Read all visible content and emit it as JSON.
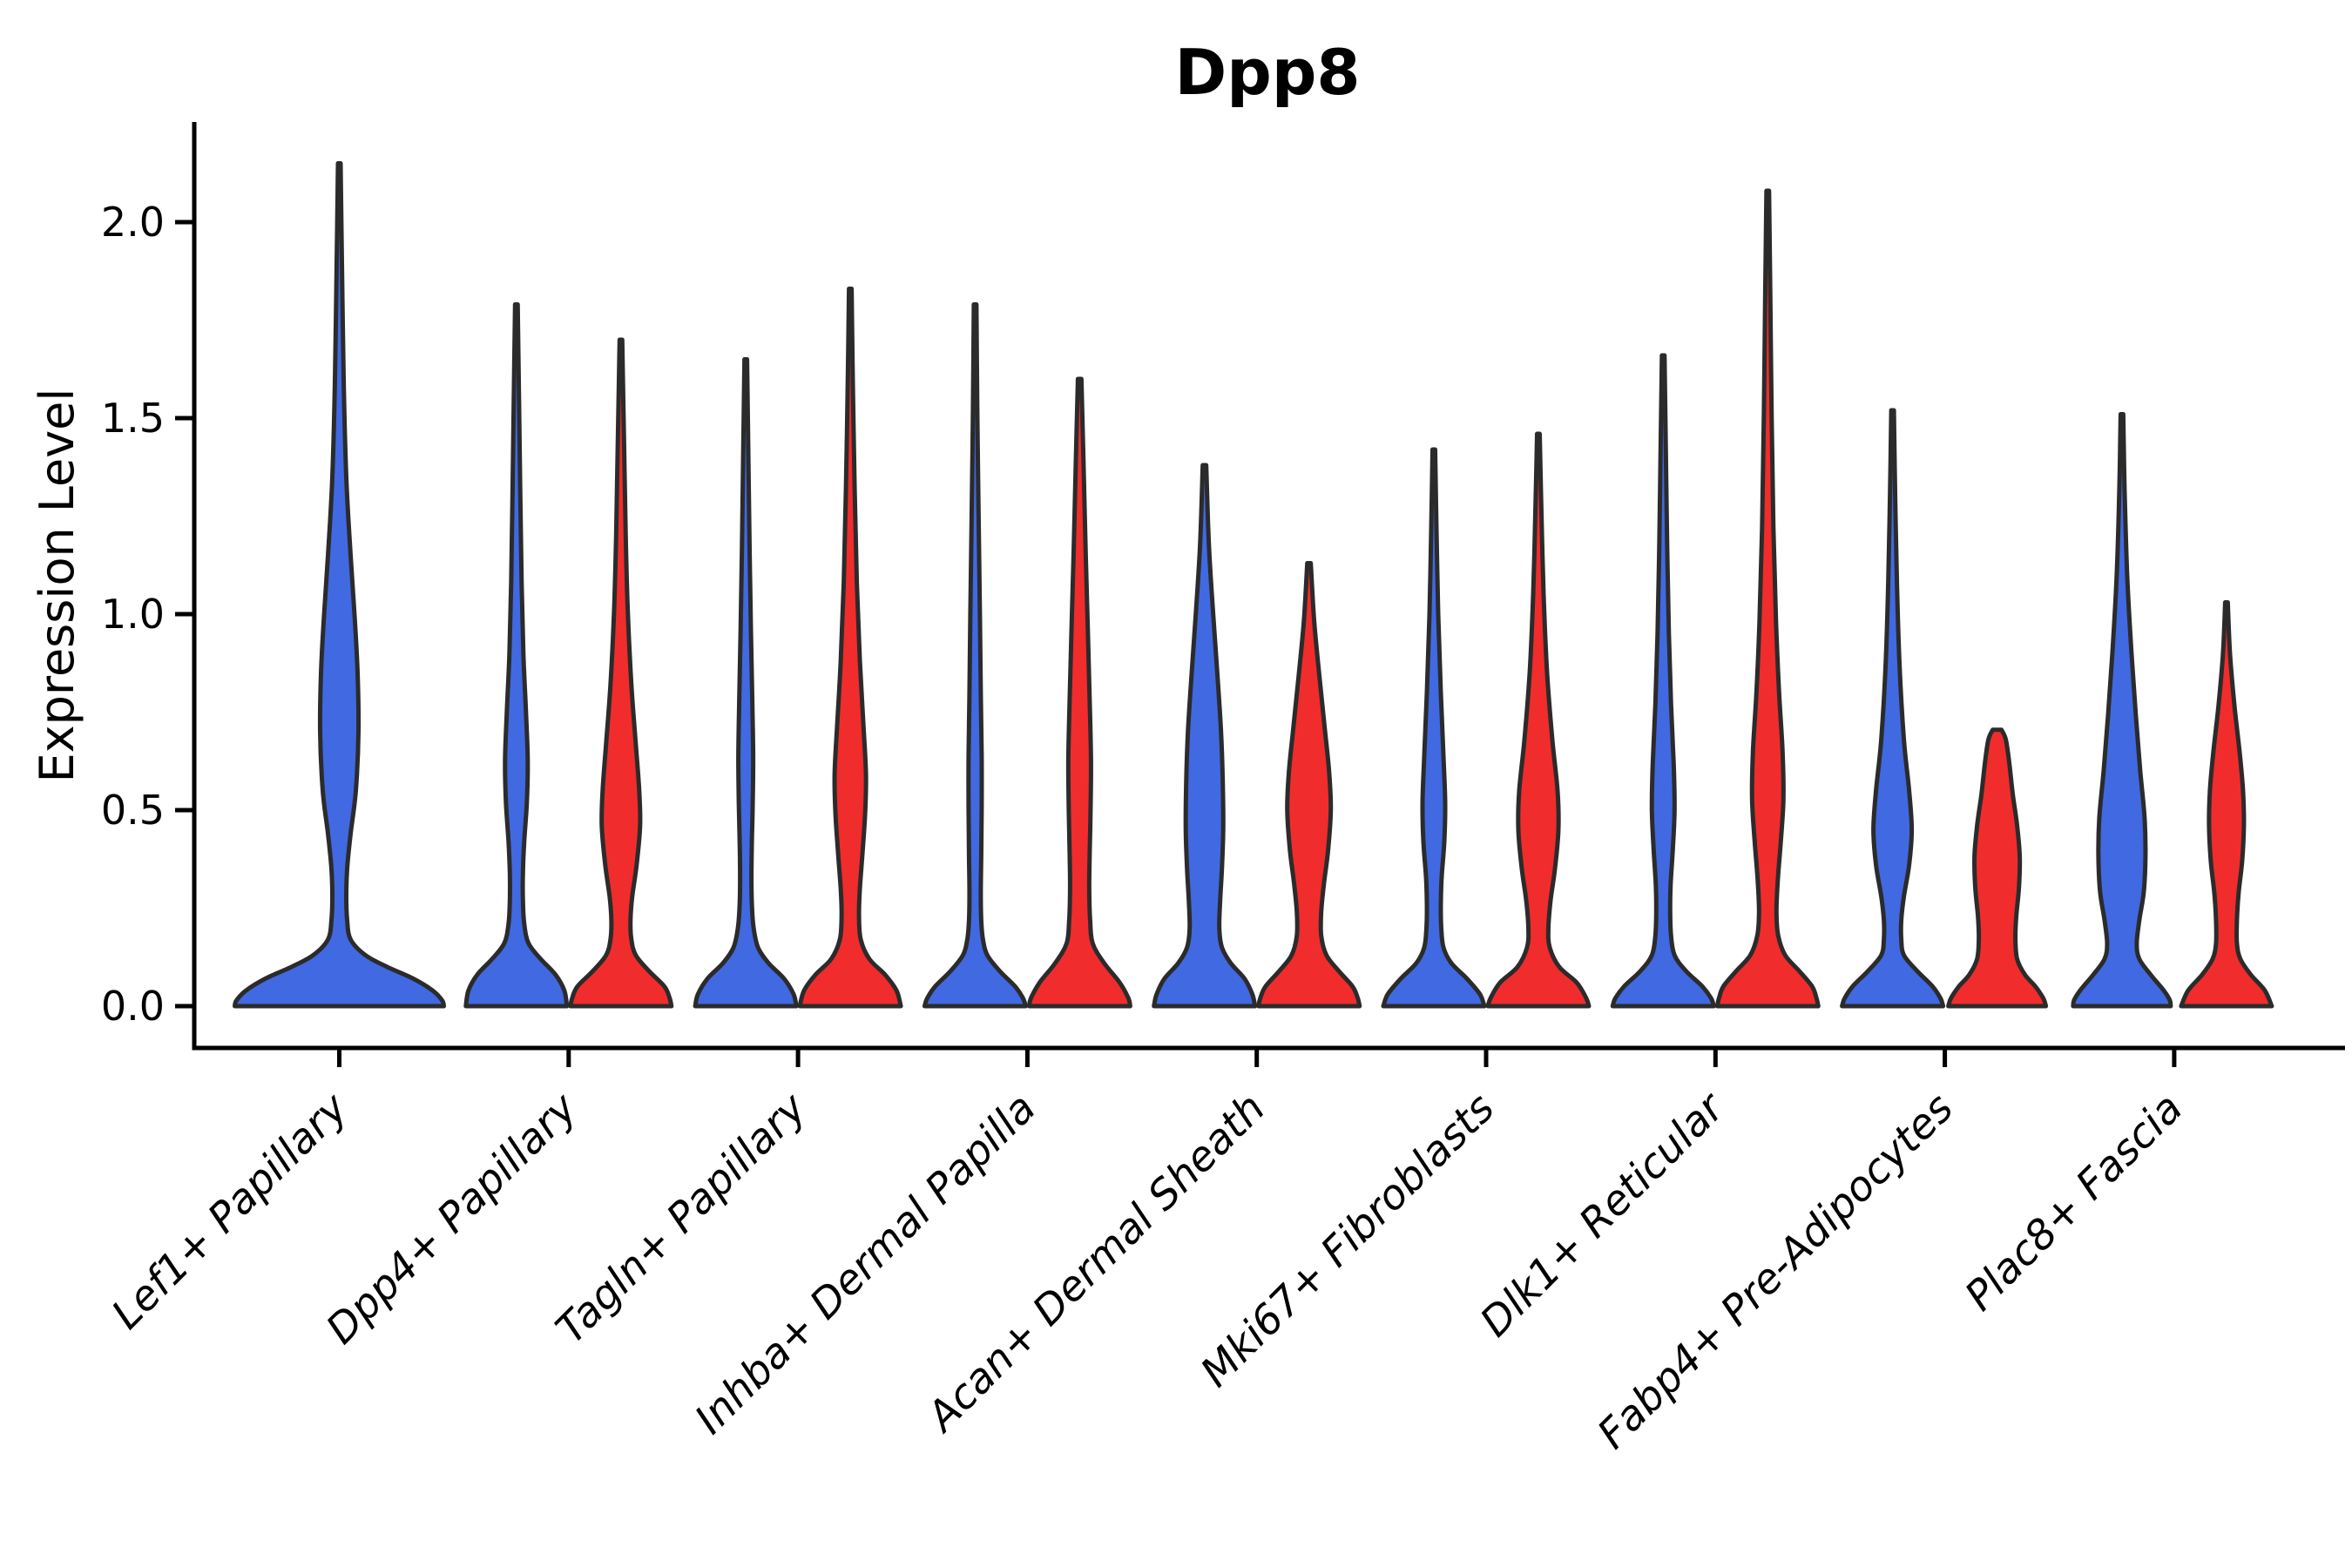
{
  "title": "Dpp8",
  "y_axis": {
    "label": "Expression Level",
    "tick_labels": [
      "0.0",
      "0.5",
      "1.0",
      "1.5",
      "2.0"
    ],
    "tick_values": [
      0.0,
      0.5,
      1.0,
      1.5,
      2.0
    ]
  },
  "colors": {
    "blue_fill": "#4169E1",
    "red_fill": "#F12C2C",
    "outline": "#2B2B2B",
    "axis": "#000000"
  },
  "chart_data": {
    "type": "violin",
    "title": "Dpp8",
    "xlabel": "",
    "ylabel": "Expression Level",
    "ylim": [
      -0.11,
      2.26
    ],
    "yticks": [
      0.0,
      0.5,
      1.0,
      1.5,
      2.0
    ],
    "grid": false,
    "legend": "none",
    "categories": [
      "Lef1+ Papillary",
      "Dpp4+ Papillary",
      "Tagln+ Papillary",
      "Inhba+ Dermal Papilla",
      "Acan+ Dermal Sheath",
      "Mki67+ Fibroblasts",
      "Dlk1+ Reticular",
      "Fabp4+ Pre-Adipocytes",
      "Plac8+ Fascia"
    ],
    "series": [
      {
        "name": "blue",
        "color": "#4169E1",
        "max_expression": [
          2.15,
          1.79,
          1.65,
          1.79,
          1.38,
          1.42,
          1.66,
          1.52,
          1.51
        ]
      },
      {
        "name": "red",
        "color": "#F12C2C",
        "max_expression": [
          null,
          1.7,
          1.83,
          1.6,
          1.13,
          1.46,
          2.08,
          0.7,
          1.03
        ]
      }
    ],
    "violins": [
      {
        "category_index": 0,
        "side": "blue",
        "single": true,
        "max": 2.15,
        "profile": [
          [
            2.15,
            1.5
          ],
          [
            1.9,
            3
          ],
          [
            1.6,
            5
          ],
          [
            1.35,
            8
          ],
          [
            1.15,
            13
          ],
          [
            0.98,
            18
          ],
          [
            0.85,
            21
          ],
          [
            0.7,
            22
          ],
          [
            0.55,
            19
          ],
          [
            0.44,
            13
          ],
          [
            0.35,
            9
          ],
          [
            0.28,
            8
          ],
          [
            0.22,
            9
          ],
          [
            0.17,
            13
          ],
          [
            0.13,
            30
          ],
          [
            0.1,
            55
          ],
          [
            0.07,
            85
          ],
          [
            0.04,
            107
          ],
          [
            0.015,
            118
          ],
          [
            0,
            120
          ]
        ]
      },
      {
        "category_index": 1,
        "side": "blue",
        "single": false,
        "max": 1.79,
        "profile": [
          [
            1.79,
            1.5
          ],
          [
            1.55,
            3
          ],
          [
            1.3,
            4.5
          ],
          [
            1.08,
            6
          ],
          [
            0.9,
            8
          ],
          [
            0.75,
            11
          ],
          [
            0.63,
            13
          ],
          [
            0.52,
            12
          ],
          [
            0.42,
            9
          ],
          [
            0.34,
            7.5
          ],
          [
            0.27,
            7.5
          ],
          [
            0.21,
            9
          ],
          [
            0.16,
            14
          ],
          [
            0.12,
            28
          ],
          [
            0.08,
            45
          ],
          [
            0.04,
            55
          ],
          [
            0,
            58
          ]
        ]
      },
      {
        "category_index": 1,
        "side": "red",
        "single": false,
        "max": 1.7,
        "profile": [
          [
            1.7,
            1.5
          ],
          [
            1.45,
            3.5
          ],
          [
            1.2,
            5.5
          ],
          [
            1.0,
            8
          ],
          [
            0.82,
            12
          ],
          [
            0.67,
            17
          ],
          [
            0.55,
            21
          ],
          [
            0.46,
            22
          ],
          [
            0.36,
            18
          ],
          [
            0.28,
            13
          ],
          [
            0.22,
            11
          ],
          [
            0.17,
            12
          ],
          [
            0.13,
            17
          ],
          [
            0.09,
            32
          ],
          [
            0.05,
            50
          ],
          [
            0.02,
            56
          ],
          [
            0,
            58
          ]
        ]
      },
      {
        "category_index": 2,
        "side": "blue",
        "single": false,
        "max": 1.65,
        "profile": [
          [
            1.65,
            1.5
          ],
          [
            1.4,
            3
          ],
          [
            1.15,
            4.5
          ],
          [
            0.95,
            6
          ],
          [
            0.78,
            7.5
          ],
          [
            0.64,
            8.5
          ],
          [
            0.52,
            8
          ],
          [
            0.42,
            7
          ],
          [
            0.33,
            6.5
          ],
          [
            0.26,
            7
          ],
          [
            0.2,
            9
          ],
          [
            0.15,
            14
          ],
          [
            0.11,
            26
          ],
          [
            0.07,
            44
          ],
          [
            0.03,
            55
          ],
          [
            0,
            58
          ]
        ]
      },
      {
        "category_index": 2,
        "side": "red",
        "single": false,
        "max": 1.83,
        "profile": [
          [
            1.83,
            1.5
          ],
          [
            1.58,
            3
          ],
          [
            1.32,
            5
          ],
          [
            1.08,
            7.5
          ],
          [
            0.88,
            11
          ],
          [
            0.72,
            15
          ],
          [
            0.59,
            18
          ],
          [
            0.49,
            17
          ],
          [
            0.39,
            14
          ],
          [
            0.3,
            11
          ],
          [
            0.23,
            10
          ],
          [
            0.17,
            12
          ],
          [
            0.12,
            22
          ],
          [
            0.08,
            40
          ],
          [
            0.04,
            53
          ],
          [
            0,
            58
          ]
        ]
      },
      {
        "category_index": 3,
        "side": "blue",
        "single": false,
        "max": 1.79,
        "profile": [
          [
            1.79,
            1.5
          ],
          [
            1.52,
            2.5
          ],
          [
            1.25,
            4
          ],
          [
            1.0,
            5.5
          ],
          [
            0.8,
            6.5
          ],
          [
            0.64,
            7.5
          ],
          [
            0.5,
            7.5
          ],
          [
            0.38,
            7
          ],
          [
            0.29,
            6.5
          ],
          [
            0.22,
            7
          ],
          [
            0.17,
            9
          ],
          [
            0.13,
            14
          ],
          [
            0.09,
            28
          ],
          [
            0.05,
            46
          ],
          [
            0.02,
            55
          ],
          [
            0,
            58
          ]
        ]
      },
      {
        "category_index": 3,
        "side": "red",
        "single": false,
        "max": 1.6,
        "profile": [
          [
            1.6,
            2
          ],
          [
            1.38,
            4.5
          ],
          [
            1.15,
            7
          ],
          [
            0.95,
            9.5
          ],
          [
            0.78,
            11.5
          ],
          [
            0.63,
            13
          ],
          [
            0.5,
            12.5
          ],
          [
            0.39,
            11.5
          ],
          [
            0.3,
            11
          ],
          [
            0.22,
            12
          ],
          [
            0.16,
            15
          ],
          [
            0.11,
            28
          ],
          [
            0.06,
            46
          ],
          [
            0.02,
            56
          ],
          [
            0,
            58
          ]
        ]
      },
      {
        "category_index": 4,
        "side": "blue",
        "single": false,
        "max": 1.38,
        "profile": [
          [
            1.38,
            2
          ],
          [
            1.18,
            5
          ],
          [
            1.0,
            10
          ],
          [
            0.84,
            15
          ],
          [
            0.7,
            19
          ],
          [
            0.57,
            21
          ],
          [
            0.45,
            21.5
          ],
          [
            0.35,
            20
          ],
          [
            0.27,
            18
          ],
          [
            0.2,
            17
          ],
          [
            0.15,
            20
          ],
          [
            0.11,
            30
          ],
          [
            0.07,
            46
          ],
          [
            0.03,
            55
          ],
          [
            0,
            58
          ]
        ]
      },
      {
        "category_index": 4,
        "side": "red",
        "single": false,
        "max": 1.13,
        "profile": [
          [
            1.13,
            2
          ],
          [
            0.98,
            6
          ],
          [
            0.84,
            12
          ],
          [
            0.71,
            18
          ],
          [
            0.6,
            23
          ],
          [
            0.5,
            25
          ],
          [
            0.4,
            22
          ],
          [
            0.31,
            17
          ],
          [
            0.24,
            14
          ],
          [
            0.18,
            14
          ],
          [
            0.13,
            20
          ],
          [
            0.09,
            34
          ],
          [
            0.05,
            50
          ],
          [
            0.02,
            56
          ],
          [
            0,
            58
          ]
        ]
      },
      {
        "category_index": 5,
        "side": "blue",
        "single": false,
        "max": 1.42,
        "profile": [
          [
            1.42,
            1.5
          ],
          [
            1.22,
            3
          ],
          [
            1.0,
            5
          ],
          [
            0.8,
            8
          ],
          [
            0.64,
            11
          ],
          [
            0.52,
            13
          ],
          [
            0.42,
            12
          ],
          [
            0.33,
            9
          ],
          [
            0.26,
            8
          ],
          [
            0.2,
            8.5
          ],
          [
            0.15,
            11
          ],
          [
            0.11,
            20
          ],
          [
            0.07,
            38
          ],
          [
            0.03,
            53
          ],
          [
            0,
            58
          ]
        ]
      },
      {
        "category_index": 5,
        "side": "red",
        "single": false,
        "max": 1.46,
        "profile": [
          [
            1.46,
            1.5
          ],
          [
            1.26,
            3.5
          ],
          [
            1.05,
            6
          ],
          [
            0.85,
            10
          ],
          [
            0.68,
            16
          ],
          [
            0.55,
            22
          ],
          [
            0.45,
            23
          ],
          [
            0.35,
            19
          ],
          [
            0.27,
            14
          ],
          [
            0.2,
            11.5
          ],
          [
            0.15,
            13
          ],
          [
            0.1,
            24
          ],
          [
            0.06,
            44
          ],
          [
            0.02,
            55
          ],
          [
            0,
            58
          ]
        ]
      },
      {
        "category_index": 6,
        "side": "blue",
        "single": false,
        "max": 1.66,
        "profile": [
          [
            1.66,
            1.5
          ],
          [
            1.42,
            3
          ],
          [
            1.18,
            4.5
          ],
          [
            0.95,
            6.5
          ],
          [
            0.77,
            9
          ],
          [
            0.62,
            12
          ],
          [
            0.5,
            13
          ],
          [
            0.4,
            11
          ],
          [
            0.31,
            8.5
          ],
          [
            0.24,
            8
          ],
          [
            0.18,
            9
          ],
          [
            0.13,
            13
          ],
          [
            0.09,
            26
          ],
          [
            0.05,
            45
          ],
          [
            0.02,
            55
          ],
          [
            0,
            58
          ]
        ]
      },
      {
        "category_index": 6,
        "side": "red",
        "single": false,
        "max": 2.08,
        "profile": [
          [
            2.08,
            1.5
          ],
          [
            1.8,
            3
          ],
          [
            1.5,
            4.5
          ],
          [
            1.22,
            6.5
          ],
          [
            0.98,
            9.5
          ],
          [
            0.8,
            13
          ],
          [
            0.65,
            17
          ],
          [
            0.53,
            18
          ],
          [
            0.42,
            15
          ],
          [
            0.32,
            11.5
          ],
          [
            0.24,
            10
          ],
          [
            0.18,
            12
          ],
          [
            0.13,
            20
          ],
          [
            0.09,
            36
          ],
          [
            0.05,
            51
          ],
          [
            0.02,
            56
          ],
          [
            0,
            58
          ]
        ]
      },
      {
        "category_index": 7,
        "side": "blue",
        "single": false,
        "max": 1.52,
        "profile": [
          [
            1.52,
            1.5
          ],
          [
            1.3,
            3
          ],
          [
            1.08,
            5
          ],
          [
            0.87,
            8
          ],
          [
            0.68,
            13
          ],
          [
            0.55,
            19
          ],
          [
            0.45,
            22
          ],
          [
            0.36,
            19
          ],
          [
            0.28,
            13
          ],
          [
            0.22,
            10
          ],
          [
            0.17,
            10
          ],
          [
            0.13,
            13
          ],
          [
            0.09,
            28
          ],
          [
            0.05,
            46
          ],
          [
            0.02,
            55
          ],
          [
            0,
            58
          ]
        ]
      },
      {
        "category_index": 7,
        "side": "red",
        "single": false,
        "max": 0.7,
        "profile": [
          [
            0.705,
            5
          ],
          [
            0.68,
            10
          ],
          [
            0.62,
            14
          ],
          [
            0.54,
            18
          ],
          [
            0.46,
            23
          ],
          [
            0.38,
            26
          ],
          [
            0.3,
            25
          ],
          [
            0.23,
            22
          ],
          [
            0.17,
            21
          ],
          [
            0.12,
            23
          ],
          [
            0.08,
            32
          ],
          [
            0.05,
            44
          ],
          [
            0.02,
            53
          ],
          [
            0,
            56
          ]
        ]
      },
      {
        "category_index": 8,
        "side": "blue",
        "single": false,
        "max": 1.51,
        "profile": [
          [
            1.51,
            1.5
          ],
          [
            1.32,
            3
          ],
          [
            1.1,
            6
          ],
          [
            0.9,
            11
          ],
          [
            0.74,
            16
          ],
          [
            0.6,
            21
          ],
          [
            0.48,
            26
          ],
          [
            0.38,
            27
          ],
          [
            0.29,
            25
          ],
          [
            0.22,
            20
          ],
          [
            0.16,
            17
          ],
          [
            0.12,
            20
          ],
          [
            0.08,
            33
          ],
          [
            0.04,
            48
          ],
          [
            0.015,
            55
          ],
          [
            0,
            56
          ]
        ]
      },
      {
        "category_index": 8,
        "side": "red",
        "single": false,
        "max": 1.03,
        "profile": [
          [
            1.03,
            1.5
          ],
          [
            0.9,
            4
          ],
          [
            0.77,
            9
          ],
          [
            0.65,
            15
          ],
          [
            0.55,
            19
          ],
          [
            0.46,
            20
          ],
          [
            0.37,
            18
          ],
          [
            0.29,
            14
          ],
          [
            0.22,
            12
          ],
          [
            0.16,
            12
          ],
          [
            0.12,
            16
          ],
          [
            0.08,
            28
          ],
          [
            0.04,
            44
          ],
          [
            0,
            52
          ]
        ]
      }
    ]
  }
}
